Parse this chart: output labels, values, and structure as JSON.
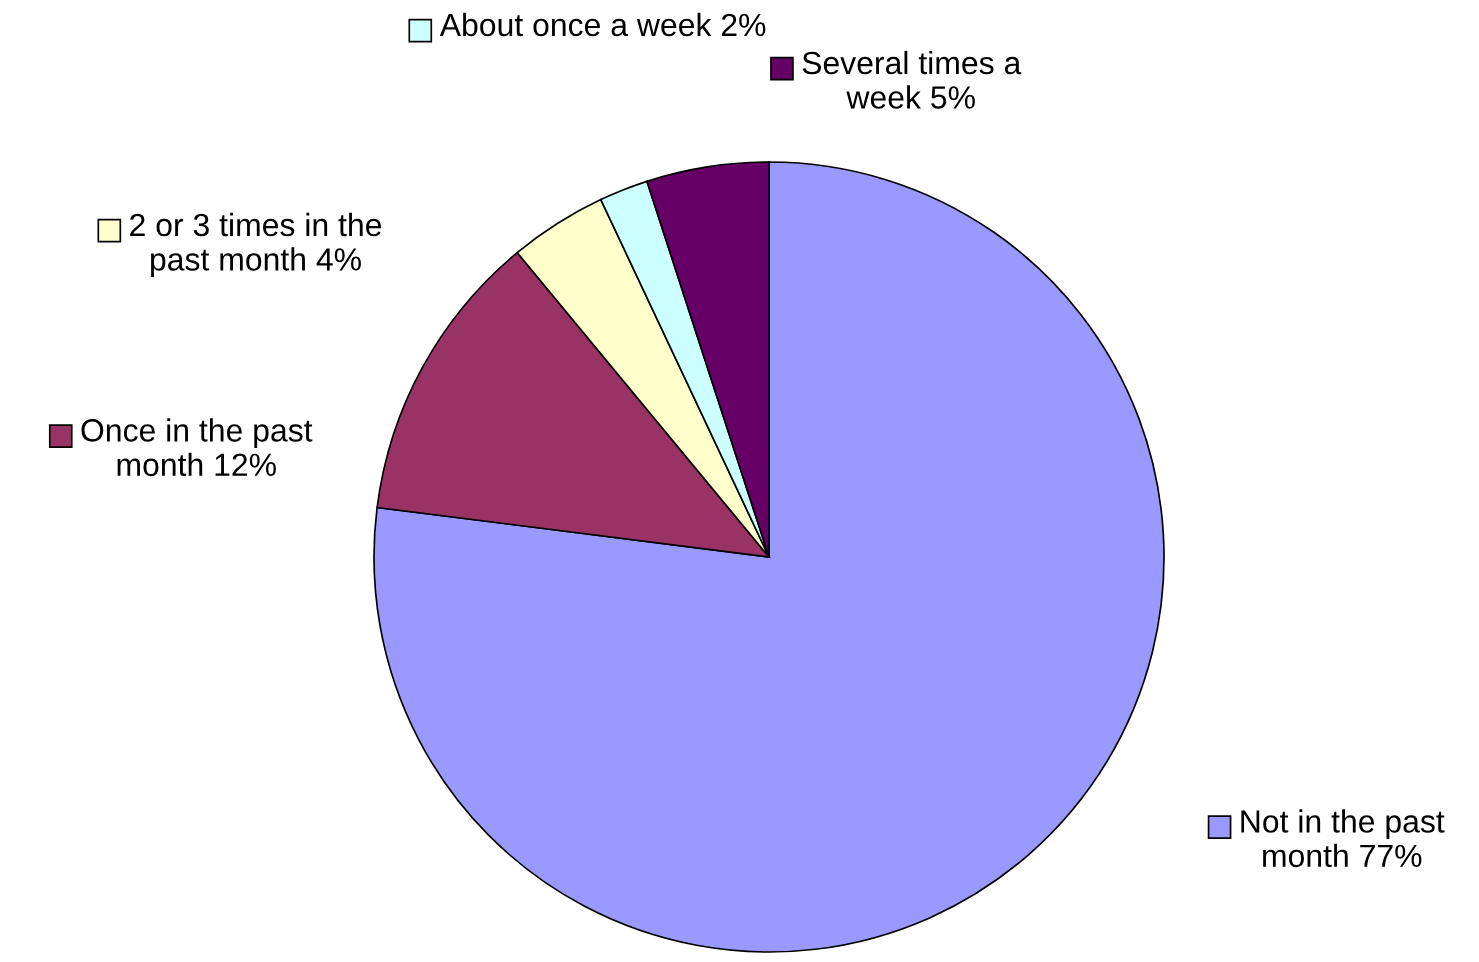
{
  "chart_data": {
    "type": "pie",
    "categories": [
      "Not in the past\nmonth",
      "Once in the past\nmonth",
      "2 or 3 times in the\npast month",
      "About once a week",
      "Several times a\nweek"
    ],
    "values": [
      77,
      12,
      4,
      2,
      5
    ],
    "value_labels": [
      "77%",
      "12%",
      "4%",
      "2%",
      "5%"
    ],
    "colors": [
      "#9999ff",
      "#993366",
      "#ffffcc",
      "#ccffff",
      "#660066"
    ],
    "legend": true
  }
}
